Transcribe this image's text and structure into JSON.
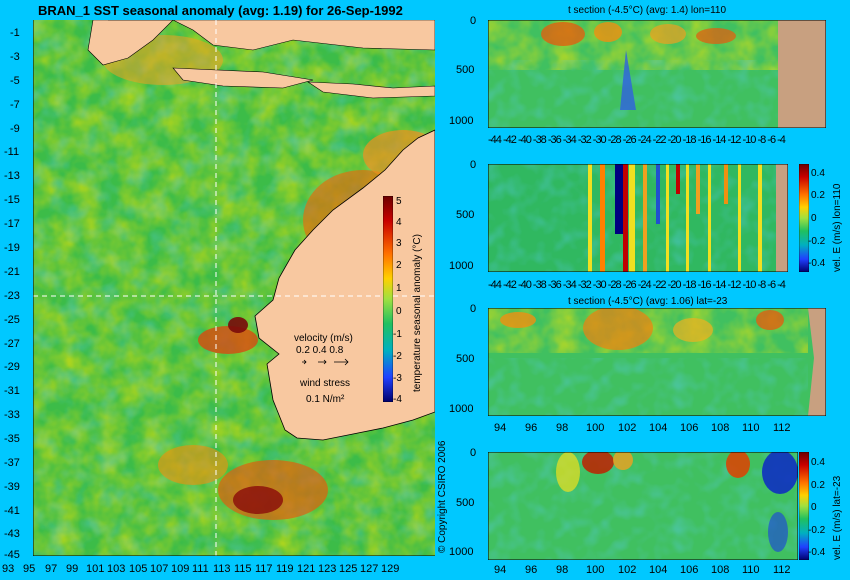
{
  "map": {
    "title": "BRAN_1  SST seasonal anomaly  (avg: 1.19)  for 26-Sep-1992",
    "y_ticks": [
      "-1",
      "-3",
      "-5",
      "-7",
      "-9",
      "-11",
      "-13",
      "-15",
      "-17",
      "-19",
      "-21",
      "-23",
      "-25",
      "-27",
      "-29",
      "-31",
      "-33",
      "-35",
      "-37",
      "-39",
      "-41",
      "-43",
      "-45"
    ],
    "x_ticks": [
      "93",
      "95",
      "97",
      "99",
      "101",
      "103",
      "105",
      "107",
      "109",
      "111",
      "113",
      "115",
      "117",
      "119",
      "121",
      "123",
      "125",
      "127",
      "129"
    ],
    "colorbar_label": "temperature seasonal anomaly (°C)",
    "colorbar_ticks": [
      "5",
      "4",
      "3",
      "2",
      "1",
      "0",
      "-1",
      "-2",
      "-3",
      "-4"
    ],
    "velocity_title": "velocity (m/s)",
    "velocity_scale": "0.2 0.4 0.8",
    "wind_title": "wind stress",
    "wind_scale": "0.1 N/m²",
    "copyright": "© Copyright CSIRO 2006"
  },
  "panels": {
    "p1_title": "t section (-4.5°C) (avg: 1.4) lon=110",
    "p3_title": "t section (-4.5°C) (avg: 1.06) lat=-23",
    "depth_ticks": [
      "0",
      "500",
      "1000"
    ],
    "lat_ticks": [
      "-44",
      "-42",
      "-40",
      "-38",
      "-36",
      "-34",
      "-32",
      "-30",
      "-28",
      "-26",
      "-24",
      "-22",
      "-20",
      "-18",
      "-16",
      "-14",
      "-12",
      "-10",
      "-8",
      "-6",
      "-4"
    ],
    "lon_ticks": [
      "94",
      "96",
      "98",
      "100",
      "102",
      "104",
      "106",
      "108",
      "110",
      "112"
    ],
    "vel_label_lon": "vel. E (m/s) lon=110",
    "vel_label_lat": "vel. E (m/s) lat=-23",
    "vel_ticks": [
      "0.4",
      "0.2",
      "0",
      "-0.2",
      "-0.4"
    ]
  },
  "colors": {
    "background": "#00c8ff",
    "land": "#f8c8a0",
    "land_section": "#c8a080",
    "anomaly_high": "#8b0000",
    "anomaly_low": "#00008b"
  },
  "chart_data": [
    {
      "type": "heatmap",
      "title": "BRAN_1  SST seasonal anomaly  (avg: 1.19)  for 26-Sep-1992",
      "xlim": [
        93,
        130
      ],
      "ylim": [
        -45,
        0
      ],
      "colorbar": [
        -4,
        5
      ]
    },
    {
      "type": "heatmap",
      "title": "t section (-4.5°C) (avg: 1.4) lon=110",
      "xlim": [
        -45,
        -3
      ],
      "ylim": [
        1050,
        0
      ]
    },
    {
      "type": "heatmap",
      "title": "",
      "ylabel": "vel. E (m/s) lon=110",
      "xlim": [
        -45,
        -3
      ],
      "ylim": [
        1050,
        0
      ],
      "colorbar": [
        -0.4,
        0.4
      ]
    },
    {
      "type": "heatmap",
      "title": "t section (-4.5°C) (avg: 1.06) lat=-23",
      "xlim": [
        93,
        114
      ],
      "ylim": [
        1050,
        0
      ]
    },
    {
      "type": "heatmap",
      "title": "",
      "ylabel": "vel. E (m/s) lat=-23",
      "xlim": [
        93,
        114
      ],
      "ylim": [
        1050,
        0
      ],
      "colorbar": [
        -0.4,
        0.4
      ]
    }
  ]
}
